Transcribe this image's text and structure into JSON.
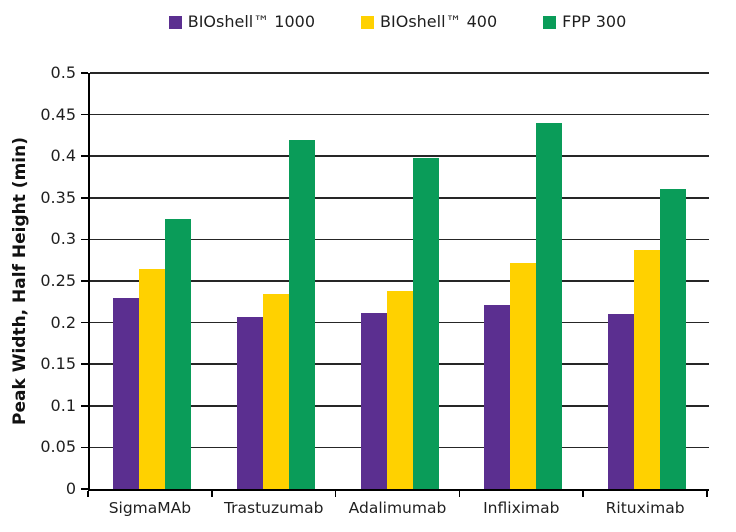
{
  "chart_data": {
    "type": "bar",
    "title": "",
    "xlabel": "",
    "ylabel": "Peak Width, Half Height (min)",
    "categories": [
      "SigmaMAb",
      "Trastuzumab",
      "Adalimumab",
      "Infliximab",
      "Rituximab"
    ],
    "series": [
      {
        "name": "BIOshell™ 1000",
        "color": "#5B2F90",
        "values": [
          0.23,
          0.207,
          0.211,
          0.221,
          0.21
        ]
      },
      {
        "name": "BIOshell™ 400",
        "color": "#FFD100",
        "values": [
          0.265,
          0.234,
          0.238,
          0.272,
          0.287
        ]
      },
      {
        "name": "FPP 300",
        "color": "#0A9C59",
        "values": [
          0.325,
          0.42,
          0.398,
          0.44,
          0.36
        ]
      }
    ],
    "ylim": [
      0,
      0.5
    ],
    "ytick_step": 0.05,
    "grid": true,
    "legend_position": "top",
    "colors": {
      "axis": "#000000",
      "gridline": "#262626",
      "text": "#1f1f1f",
      "background": "#ffffff"
    }
  }
}
